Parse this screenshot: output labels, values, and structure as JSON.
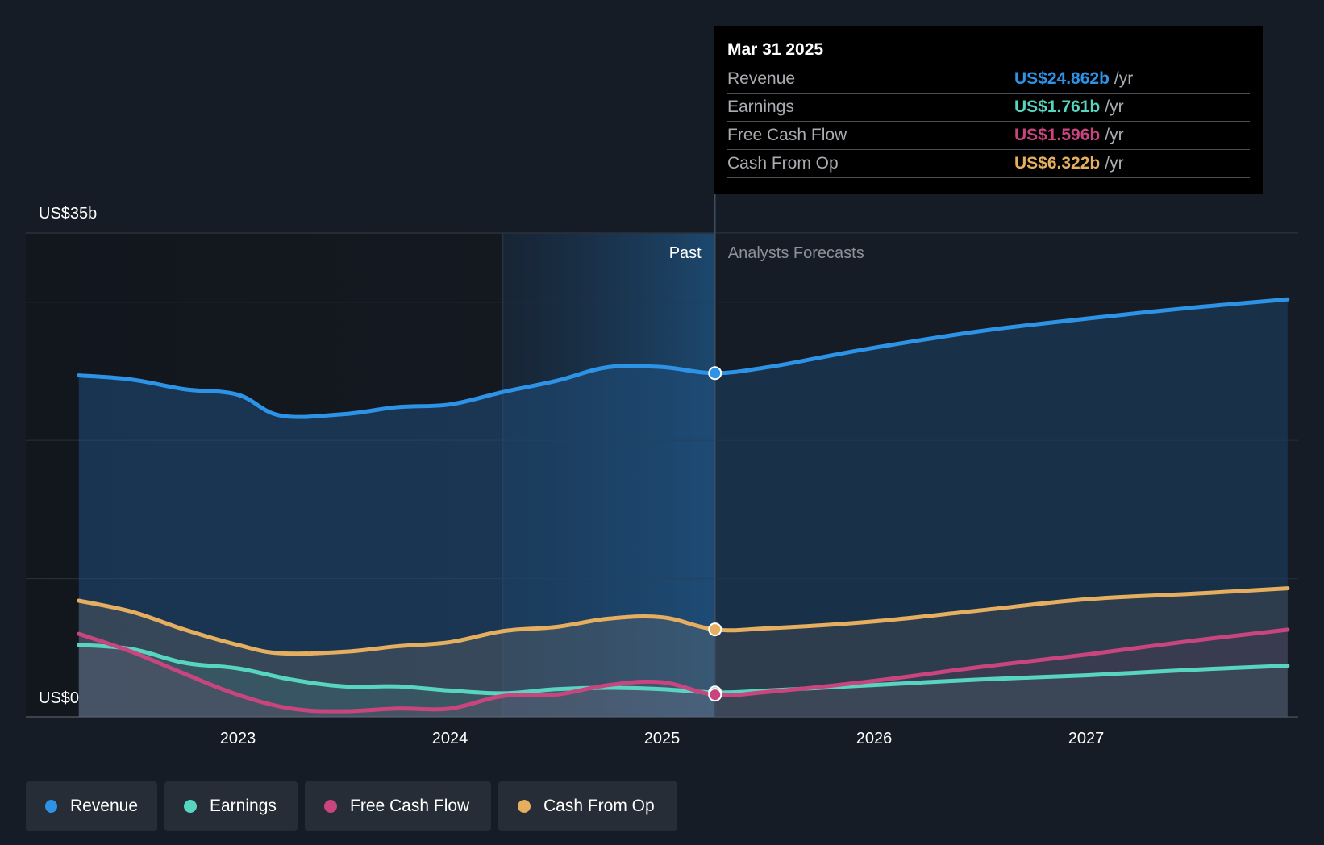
{
  "chart_data": {
    "type": "area",
    "title": "",
    "xlabel": "",
    "ylabel": "",
    "y_unit": "US$b",
    "ylim": [
      0,
      35
    ],
    "y_tick_labels": [
      "US$35b",
      "US$0"
    ],
    "y_gridlines": [
      0,
      10,
      20,
      30,
      35
    ],
    "x_range": [
      2022.0,
      2027.95
    ],
    "x_ticks": [
      2023,
      2024,
      2025,
      2026,
      2027
    ],
    "x_tick_labels": [
      "2023",
      "2024",
      "2025",
      "2026",
      "2027"
    ],
    "past_label": "Past",
    "forecast_label": "Analysts Forecasts",
    "divider_x": 2025.25,
    "highlight_start_x": 2024.25,
    "series": [
      {
        "name": "Revenue",
        "color": "#2d93e6",
        "x": [
          2022.25,
          2022.5,
          2022.75,
          2023.0,
          2023.2,
          2023.5,
          2023.75,
          2024.0,
          2024.25,
          2024.5,
          2024.75,
          2025.0,
          2025.25,
          2025.5,
          2025.75,
          2026.0,
          2026.5,
          2027.0,
          2027.5,
          2027.95
        ],
        "values": [
          24.7,
          24.4,
          23.7,
          23.3,
          21.8,
          21.9,
          22.4,
          22.6,
          23.5,
          24.3,
          25.3,
          25.3,
          24.862,
          25.3,
          26.0,
          26.7,
          27.9,
          28.8,
          29.6,
          30.2
        ]
      },
      {
        "name": "Earnings",
        "color": "#58d5c0",
        "x": [
          2022.25,
          2022.5,
          2022.75,
          2023.0,
          2023.25,
          2023.5,
          2023.75,
          2024.0,
          2024.25,
          2024.5,
          2024.75,
          2025.0,
          2025.25,
          2025.5,
          2026.0,
          2026.5,
          2027.0,
          2027.5,
          2027.95
        ],
        "values": [
          5.2,
          4.9,
          3.9,
          3.5,
          2.7,
          2.2,
          2.2,
          1.9,
          1.7,
          2.0,
          2.1,
          2.0,
          1.761,
          1.9,
          2.3,
          2.7,
          3.0,
          3.4,
          3.7
        ]
      },
      {
        "name": "Free Cash Flow",
        "color": "#c8457e",
        "x": [
          2022.25,
          2022.5,
          2022.75,
          2023.0,
          2023.25,
          2023.5,
          2023.75,
          2024.0,
          2024.25,
          2024.5,
          2024.75,
          2025.0,
          2025.25,
          2025.5,
          2026.0,
          2026.5,
          2027.0,
          2027.5,
          2027.95
        ],
        "values": [
          6.0,
          4.7,
          3.1,
          1.6,
          0.6,
          0.4,
          0.6,
          0.6,
          1.5,
          1.6,
          2.3,
          2.5,
          1.596,
          1.8,
          2.6,
          3.6,
          4.5,
          5.5,
          6.3
        ]
      },
      {
        "name": "Cash From Op",
        "color": "#e6ae5f",
        "x": [
          2022.25,
          2022.5,
          2022.75,
          2023.0,
          2023.2,
          2023.5,
          2023.75,
          2024.0,
          2024.25,
          2024.5,
          2024.75,
          2025.0,
          2025.25,
          2025.5,
          2026.0,
          2026.5,
          2027.0,
          2027.5,
          2027.95
        ],
        "values": [
          8.4,
          7.6,
          6.3,
          5.2,
          4.6,
          4.7,
          5.1,
          5.4,
          6.2,
          6.5,
          7.1,
          7.2,
          6.322,
          6.4,
          6.9,
          7.7,
          8.5,
          8.9,
          9.3
        ]
      }
    ]
  },
  "tooltip": {
    "date": "Mar 31 2025",
    "unit": "/yr",
    "rows": [
      {
        "label": "Revenue",
        "value": "US$24.862b",
        "color": "#2d93e6"
      },
      {
        "label": "Earnings",
        "value": "US$1.761b",
        "color": "#58d5c0"
      },
      {
        "label": "Free Cash Flow",
        "value": "US$1.596b",
        "color": "#c8457e"
      },
      {
        "label": "Cash From Op",
        "value": "US$6.322b",
        "color": "#e6ae5f"
      }
    ]
  },
  "legend": [
    {
      "label": "Revenue",
      "color": "#2d93e6"
    },
    {
      "label": "Earnings",
      "color": "#58d5c0"
    },
    {
      "label": "Free Cash Flow",
      "color": "#c8457e"
    },
    {
      "label": "Cash From Op",
      "color": "#e6ae5f"
    }
  ]
}
